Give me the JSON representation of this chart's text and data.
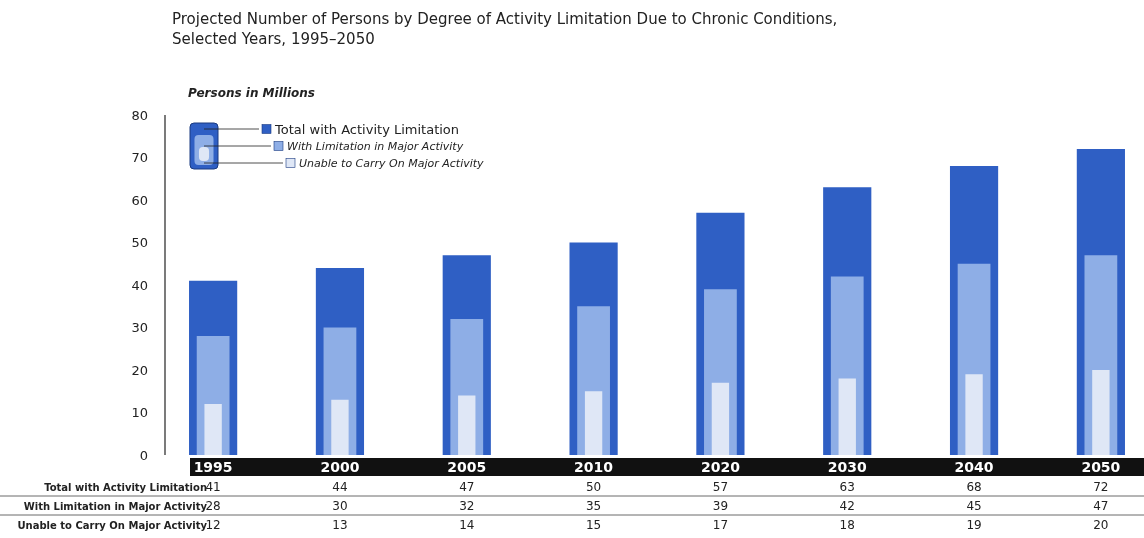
{
  "chart_data": {
    "type": "bar",
    "title": "Projected Number of Persons by Degree of Activity Limitation Due to Chronic Conditions,\nSelected Years, 1995–2050",
    "ylabel": "Persons in Millions",
    "categories": [
      "1995",
      "2000",
      "2005",
      "2010",
      "2020",
      "2030",
      "2040",
      "2050"
    ],
    "series": [
      {
        "name": "Total with Activity Limitation",
        "color": "#2f5fc4",
        "values": [
          41,
          44,
          47,
          50,
          57,
          63,
          68,
          72
        ]
      },
      {
        "name": "With Limitation in Major Activity",
        "color": "#8eaee6",
        "values": [
          28,
          30,
          32,
          35,
          39,
          42,
          45,
          47
        ]
      },
      {
        "name": "Unable to Carry On Major Activity",
        "color": "#dfe7f6",
        "values": [
          12,
          13,
          14,
          15,
          17,
          18,
          19,
          20
        ]
      }
    ],
    "ylim": [
      0,
      80
    ],
    "yticks": [
      0,
      10,
      20,
      30,
      40,
      50,
      60,
      70,
      80
    ],
    "grid": false,
    "legend": "top left",
    "data_labels": true
  }
}
